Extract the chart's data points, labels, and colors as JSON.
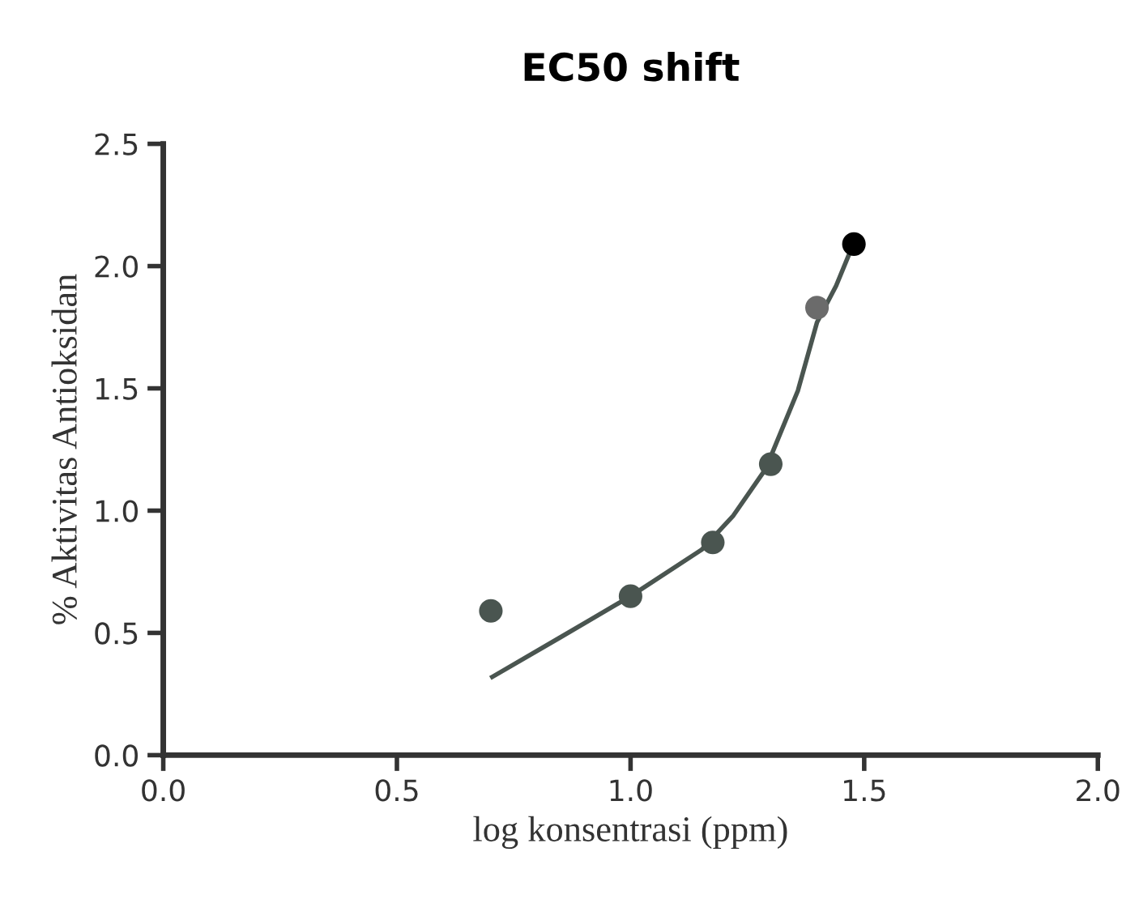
{
  "chart_data": {
    "type": "scatter",
    "title": "EC50 shift",
    "xlabel": "log konsentrasi (ppm)",
    "ylabel": "% Aktivitas Antioksidan",
    "xlim": [
      0,
      2.0
    ],
    "ylim": [
      0,
      2.5
    ],
    "xticks": [
      {
        "value": 0,
        "label": "0.0"
      },
      0.5,
      {
        "value": 1,
        "label": "1.0"
      },
      1.5,
      {
        "value": 2,
        "label": "2.0"
      }
    ],
    "yticks": [
      {
        "value": 0,
        "label": "0.0"
      },
      0.5,
      {
        "value": 1,
        "label": "1.0"
      },
      1.5,
      {
        "value": 2,
        "label": "2.0"
      },
      2.5
    ],
    "grid": false,
    "series": [
      {
        "x": [
          0.701,
          1.0,
          1.176,
          1.3,
          1.399,
          1.478
        ],
        "values": [
          0.59,
          0.65,
          0.87,
          1.19,
          1.83,
          2.09
        ],
        "colors": [
          "#4a5550",
          "#4a5550",
          "#4a5550",
          "#4a5550",
          "#6b6b6b",
          "#000000"
        ],
        "marker": "circle"
      },
      {
        "type": "line",
        "color": "#4a5550",
        "x": [
          0.704,
          0.848,
          1.0,
          1.152,
          1.22,
          1.289,
          1.358,
          1.399,
          1.44,
          1.468
        ],
        "values": [
          0.32,
          0.48,
          0.65,
          0.84,
          0.98,
          1.17,
          1.49,
          1.77,
          1.92,
          2.05
        ],
        "marker": "none",
        "line_style": "solid"
      }
    ]
  }
}
